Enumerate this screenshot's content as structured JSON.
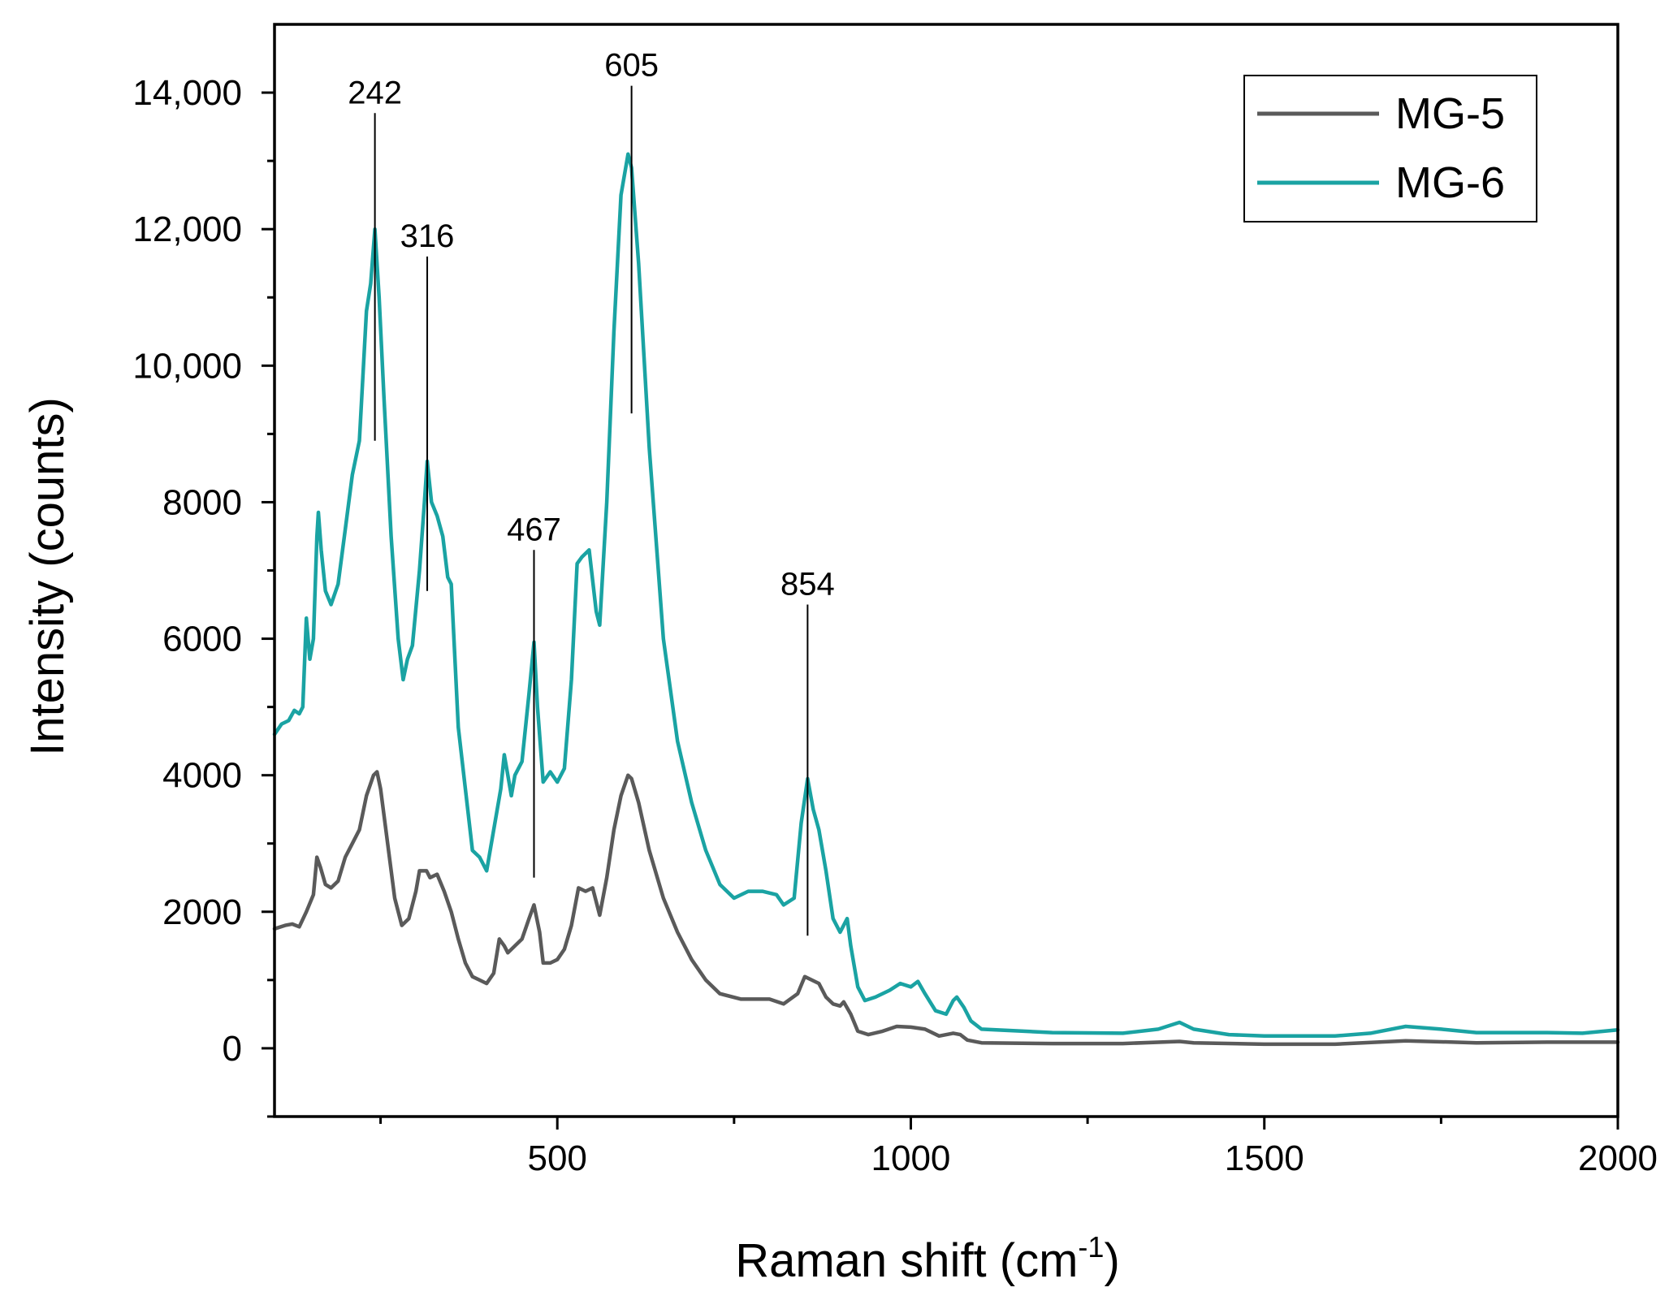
{
  "chart_data": {
    "type": "line",
    "title": "",
    "xlabel": "Raman shift (cm",
    "xlabel_sup": "-1",
    "xlabel_end": ")",
    "ylabel": "Intensity (counts)",
    "xlim": [
      100,
      2000
    ],
    "ylim": [
      -1000,
      15000
    ],
    "x_ticks": [
      500,
      1000,
      1500,
      2000
    ],
    "x_tick_labels": [
      "500",
      "1000",
      "1500",
      "2000"
    ],
    "x_minor_ticks": [
      250,
      750,
      1250,
      1750
    ],
    "y_ticks": [
      0,
      2000,
      4000,
      6000,
      8000,
      10000,
      12000,
      14000
    ],
    "y_tick_labels": [
      "0",
      "2000",
      "4000",
      "6000",
      "8000",
      "10,000",
      "12,000",
      "14,000"
    ],
    "y_minor_ticks": [
      -1000,
      1000,
      3000,
      5000,
      7000,
      9000,
      11000,
      13000
    ],
    "legend": {
      "position": "top-right",
      "entries": [
        "MG-5",
        "MG-6"
      ]
    },
    "series": [
      {
        "name": "MG-5",
        "color": "#5a5a5a",
        "points": [
          [
            100,
            1750
          ],
          [
            115,
            1800
          ],
          [
            125,
            1820
          ],
          [
            135,
            1780
          ],
          [
            145,
            2000
          ],
          [
            155,
            2250
          ],
          [
            160,
            2800
          ],
          [
            165,
            2650
          ],
          [
            172,
            2400
          ],
          [
            180,
            2350
          ],
          [
            190,
            2450
          ],
          [
            200,
            2800
          ],
          [
            210,
            3000
          ],
          [
            220,
            3200
          ],
          [
            230,
            3700
          ],
          [
            240,
            4000
          ],
          [
            245,
            4050
          ],
          [
            250,
            3800
          ],
          [
            260,
            3000
          ],
          [
            270,
            2200
          ],
          [
            280,
            1800
          ],
          [
            290,
            1900
          ],
          [
            300,
            2300
          ],
          [
            305,
            2600
          ],
          [
            315,
            2600
          ],
          [
            320,
            2500
          ],
          [
            330,
            2550
          ],
          [
            340,
            2300
          ],
          [
            350,
            2000
          ],
          [
            360,
            1600
          ],
          [
            370,
            1250
          ],
          [
            380,
            1050
          ],
          [
            390,
            1000
          ],
          [
            400,
            950
          ],
          [
            410,
            1100
          ],
          [
            418,
            1600
          ],
          [
            425,
            1500
          ],
          [
            430,
            1400
          ],
          [
            440,
            1500
          ],
          [
            450,
            1600
          ],
          [
            460,
            1900
          ],
          [
            467,
            2100
          ],
          [
            475,
            1700
          ],
          [
            480,
            1250
          ],
          [
            490,
            1250
          ],
          [
            500,
            1300
          ],
          [
            510,
            1450
          ],
          [
            520,
            1800
          ],
          [
            530,
            2350
          ],
          [
            540,
            2300
          ],
          [
            550,
            2350
          ],
          [
            560,
            1950
          ],
          [
            570,
            2500
          ],
          [
            580,
            3200
          ],
          [
            590,
            3700
          ],
          [
            600,
            4000
          ],
          [
            605,
            3950
          ],
          [
            615,
            3600
          ],
          [
            630,
            2900
          ],
          [
            650,
            2200
          ],
          [
            670,
            1700
          ],
          [
            690,
            1300
          ],
          [
            710,
            1000
          ],
          [
            730,
            800
          ],
          [
            760,
            720
          ],
          [
            800,
            720
          ],
          [
            820,
            650
          ],
          [
            840,
            800
          ],
          [
            850,
            1050
          ],
          [
            860,
            1000
          ],
          [
            870,
            950
          ],
          [
            880,
            750
          ],
          [
            890,
            650
          ],
          [
            900,
            620
          ],
          [
            905,
            680
          ],
          [
            915,
            500
          ],
          [
            925,
            250
          ],
          [
            940,
            200
          ],
          [
            960,
            250
          ],
          [
            980,
            320
          ],
          [
            1000,
            310
          ],
          [
            1020,
            280
          ],
          [
            1040,
            180
          ],
          [
            1060,
            220
          ],
          [
            1070,
            200
          ],
          [
            1080,
            120
          ],
          [
            1100,
            80
          ],
          [
            1200,
            70
          ],
          [
            1300,
            70
          ],
          [
            1380,
            100
          ],
          [
            1400,
            80
          ],
          [
            1500,
            60
          ],
          [
            1600,
            60
          ],
          [
            1700,
            110
          ],
          [
            1800,
            80
          ],
          [
            1900,
            90
          ],
          [
            2000,
            90
          ]
        ]
      },
      {
        "name": "MG-6",
        "color": "#1aa3a3",
        "points": [
          [
            100,
            4600
          ],
          [
            110,
            4750
          ],
          [
            120,
            4800
          ],
          [
            128,
            4950
          ],
          [
            135,
            4900
          ],
          [
            140,
            5000
          ],
          [
            145,
            6300
          ],
          [
            150,
            5700
          ],
          [
            155,
            6000
          ],
          [
            160,
            7500
          ],
          [
            162,
            7850
          ],
          [
            166,
            7300
          ],
          [
            172,
            6700
          ],
          [
            180,
            6500
          ],
          [
            190,
            6800
          ],
          [
            200,
            7600
          ],
          [
            210,
            8400
          ],
          [
            220,
            8900
          ],
          [
            230,
            10800
          ],
          [
            236,
            11200
          ],
          [
            242,
            12000
          ],
          [
            248,
            11000
          ],
          [
            255,
            9500
          ],
          [
            265,
            7500
          ],
          [
            275,
            6000
          ],
          [
            282,
            5400
          ],
          [
            288,
            5700
          ],
          [
            295,
            5900
          ],
          [
            305,
            7000
          ],
          [
            312,
            8000
          ],
          [
            316,
            8600
          ],
          [
            322,
            8000
          ],
          [
            330,
            7800
          ],
          [
            338,
            7500
          ],
          [
            345,
            6900
          ],
          [
            350,
            6800
          ],
          [
            360,
            4700
          ],
          [
            370,
            3800
          ],
          [
            380,
            2900
          ],
          [
            390,
            2800
          ],
          [
            400,
            2600
          ],
          [
            410,
            3200
          ],
          [
            420,
            3800
          ],
          [
            425,
            4300
          ],
          [
            430,
            4000
          ],
          [
            435,
            3700
          ],
          [
            440,
            4000
          ],
          [
            450,
            4200
          ],
          [
            460,
            5200
          ],
          [
            467,
            5950
          ],
          [
            472,
            5000
          ],
          [
            480,
            3900
          ],
          [
            490,
            4050
          ],
          [
            500,
            3900
          ],
          [
            510,
            4100
          ],
          [
            520,
            5400
          ],
          [
            528,
            7100
          ],
          [
            535,
            7200
          ],
          [
            545,
            7300
          ],
          [
            555,
            6400
          ],
          [
            560,
            6200
          ],
          [
            570,
            8000
          ],
          [
            580,
            10500
          ],
          [
            590,
            12500
          ],
          [
            600,
            13100
          ],
          [
            605,
            12900
          ],
          [
            615,
            11500
          ],
          [
            630,
            8800
          ],
          [
            650,
            6000
          ],
          [
            670,
            4500
          ],
          [
            690,
            3600
          ],
          [
            710,
            2900
          ],
          [
            730,
            2400
          ],
          [
            750,
            2200
          ],
          [
            770,
            2300
          ],
          [
            790,
            2300
          ],
          [
            810,
            2250
          ],
          [
            820,
            2100
          ],
          [
            835,
            2200
          ],
          [
            845,
            3300
          ],
          [
            854,
            3950
          ],
          [
            862,
            3500
          ],
          [
            870,
            3200
          ],
          [
            880,
            2600
          ],
          [
            890,
            1900
          ],
          [
            900,
            1700
          ],
          [
            910,
            1900
          ],
          [
            915,
            1500
          ],
          [
            925,
            900
          ],
          [
            935,
            700
          ],
          [
            950,
            750
          ],
          [
            970,
            850
          ],
          [
            985,
            950
          ],
          [
            1000,
            900
          ],
          [
            1010,
            980
          ],
          [
            1020,
            800
          ],
          [
            1035,
            550
          ],
          [
            1050,
            500
          ],
          [
            1060,
            700
          ],
          [
            1065,
            750
          ],
          [
            1075,
            600
          ],
          [
            1085,
            400
          ],
          [
            1100,
            280
          ],
          [
            1200,
            230
          ],
          [
            1300,
            220
          ],
          [
            1350,
            280
          ],
          [
            1380,
            380
          ],
          [
            1400,
            280
          ],
          [
            1450,
            200
          ],
          [
            1500,
            180
          ],
          [
            1600,
            180
          ],
          [
            1650,
            220
          ],
          [
            1700,
            320
          ],
          [
            1750,
            280
          ],
          [
            1800,
            230
          ],
          [
            1900,
            230
          ],
          [
            1950,
            220
          ],
          [
            2000,
            270
          ]
        ]
      }
    ],
    "annotations": [
      {
        "label": "242",
        "x": 242,
        "y_top": 13700,
        "y_bottom": 8900
      },
      {
        "label": "316",
        "x": 316,
        "y_top": 11600,
        "y_bottom": 6700
      },
      {
        "label": "467",
        "x": 467,
        "y_top": 7300,
        "y_bottom": 2500
      },
      {
        "label": "605",
        "x": 605,
        "y_top": 14100,
        "y_bottom": 9300
      },
      {
        "label": "854",
        "x": 854,
        "y_top": 6500,
        "y_bottom": 1650
      }
    ]
  }
}
